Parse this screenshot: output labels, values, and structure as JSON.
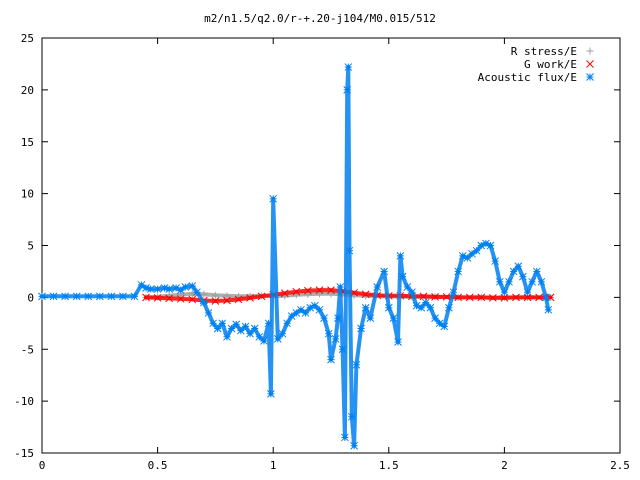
{
  "chart_data": {
    "type": "scatter",
    "title": "m2/n1.5/q2.0/r-+.20-j104/M0.015/512",
    "xlabel": "",
    "ylabel": "",
    "xlim": [
      0,
      2.5
    ],
    "ylim": [
      -15,
      25
    ],
    "x_ticks": [
      0,
      0.5,
      1,
      1.5,
      2,
      2.5
    ],
    "x_tick_labels": [
      "0",
      "0.5",
      "1",
      "1.5",
      "2",
      "2.5"
    ],
    "y_ticks": [
      -15,
      -10,
      -5,
      0,
      5,
      10,
      15,
      20,
      25
    ],
    "y_tick_labels": [
      "-15",
      "-10",
      "-5",
      "0",
      "5",
      "10",
      "15",
      "20",
      "25"
    ],
    "grid": false,
    "legend_position": "top-right",
    "series": [
      {
        "name": "R stress/E",
        "color": "#a0a0a0",
        "marker": "plus",
        "x": [
          0.45,
          0.5,
          0.55,
          0.6,
          0.65,
          0.7,
          0.75,
          0.8,
          0.85,
          0.9,
          0.95,
          1.0,
          1.05,
          1.1,
          1.15,
          1.2,
          1.25,
          1.3,
          1.35,
          1.4,
          1.5,
          1.6,
          1.7,
          1.8,
          1.9,
          2.0,
          2.1,
          2.2
        ],
        "y": [
          0.0,
          0.05,
          0.15,
          0.25,
          0.35,
          0.3,
          0.2,
          0.15,
          0.1,
          0.1,
          0.15,
          0.1,
          0.15,
          0.25,
          0.3,
          0.35,
          0.35,
          0.3,
          0.2,
          0.15,
          0.1,
          0.05,
          0.05,
          0.0,
          0.0,
          0.0,
          0.0,
          0.0
        ]
      },
      {
        "name": "G work/E",
        "color": "#ff0000",
        "marker": "cross",
        "x": [
          0.45,
          0.5,
          0.55,
          0.6,
          0.65,
          0.7,
          0.75,
          0.8,
          0.85,
          0.9,
          0.95,
          1.0,
          1.05,
          1.1,
          1.15,
          1.2,
          1.25,
          1.3,
          1.35,
          1.4,
          1.45,
          1.5,
          1.55,
          1.6,
          1.65,
          1.7,
          1.75,
          1.8,
          1.85,
          1.9,
          1.95,
          2.0,
          2.05,
          2.1,
          2.15,
          2.2
        ],
        "y": [
          0.0,
          -0.05,
          -0.1,
          -0.15,
          -0.2,
          -0.3,
          -0.35,
          -0.3,
          -0.2,
          -0.05,
          0.1,
          0.25,
          0.4,
          0.55,
          0.65,
          0.7,
          0.7,
          0.6,
          0.45,
          0.3,
          0.2,
          0.15,
          0.15,
          0.1,
          0.1,
          0.05,
          0.05,
          0.0,
          0.0,
          0.0,
          -0.05,
          -0.05,
          0.0,
          0.0,
          0.0,
          0.0
        ]
      },
      {
        "name": "Acoustic flux/E",
        "color": "#0080f0",
        "marker": "star",
        "x": [
          0.0,
          0.05,
          0.1,
          0.15,
          0.2,
          0.25,
          0.3,
          0.35,
          0.4,
          0.43,
          0.45,
          0.47,
          0.5,
          0.53,
          0.55,
          0.58,
          0.6,
          0.62,
          0.65,
          0.67,
          0.7,
          0.72,
          0.74,
          0.76,
          0.78,
          0.8,
          0.82,
          0.84,
          0.86,
          0.88,
          0.9,
          0.92,
          0.94,
          0.96,
          0.98,
          0.99,
          1.0,
          1.02,
          1.04,
          1.06,
          1.08,
          1.1,
          1.12,
          1.14,
          1.16,
          1.18,
          1.2,
          1.22,
          1.24,
          1.25,
          1.27,
          1.28,
          1.29,
          1.3,
          1.31,
          1.32,
          1.325,
          1.33,
          1.34,
          1.35,
          1.36,
          1.38,
          1.4,
          1.42,
          1.45,
          1.48,
          1.5,
          1.52,
          1.54,
          1.55,
          1.56,
          1.58,
          1.6,
          1.62,
          1.64,
          1.66,
          1.68,
          1.7,
          1.72,
          1.74,
          1.76,
          1.78,
          1.8,
          1.82,
          1.84,
          1.86,
          1.88,
          1.9,
          1.92,
          1.94,
          1.96,
          1.98,
          2.0,
          2.02,
          2.04,
          2.06,
          2.08,
          2.1,
          2.12,
          2.14,
          2.16,
          2.18,
          2.19
        ],
        "y": [
          0.1,
          0.1,
          0.1,
          0.1,
          0.1,
          0.1,
          0.1,
          0.1,
          0.1,
          1.2,
          0.9,
          0.8,
          0.8,
          0.9,
          0.8,
          0.9,
          0.7,
          1.0,
          1.1,
          0.5,
          -0.5,
          -1.5,
          -2.5,
          -3.0,
          -2.5,
          -3.8,
          -3.0,
          -2.6,
          -3.2,
          -2.8,
          -3.5,
          -3.0,
          -3.8,
          -4.2,
          -2.5,
          -9.3,
          9.5,
          -4.0,
          -3.5,
          -2.5,
          -1.8,
          -1.5,
          -1.2,
          -1.5,
          -1.0,
          -0.8,
          -1.2,
          -2.0,
          -3.5,
          -6.0,
          -4.0,
          -2.0,
          1.0,
          -5.0,
          -13.5,
          20.0,
          22.2,
          4.5,
          -11.5,
          -14.3,
          -6.5,
          -3.0,
          -1.0,
          -2.0,
          1.0,
          2.5,
          -1.0,
          -2.0,
          -4.3,
          4.0,
          2.0,
          1.0,
          0.5,
          -0.8,
          -1.0,
          -0.5,
          -1.0,
          -2.0,
          -2.5,
          -2.8,
          -1.0,
          0.5,
          2.5,
          4.0,
          3.8,
          4.2,
          4.5,
          5.0,
          5.2,
          5.0,
          3.5,
          1.5,
          0.5,
          1.5,
          2.5,
          3.0,
          2.0,
          0.5,
          1.5,
          2.5,
          1.5,
          0.0,
          -1.2
        ]
      }
    ]
  }
}
